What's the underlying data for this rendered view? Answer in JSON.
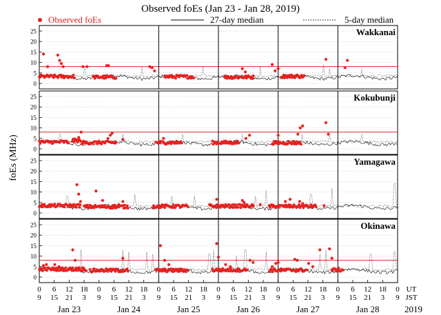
{
  "chart_data": {
    "type": "scatter",
    "title": "Observed foEs (Jan 23 - Jan 28, 2019)",
    "ylabel": "foEs (MHz)",
    "legend": {
      "placement": "top",
      "observed": "Observed foEs",
      "median27": "27-day median",
      "median5": "5-day median"
    },
    "ylim": [
      0,
      25
    ],
    "yticks": [
      "0",
      "5",
      "10",
      "15",
      "20",
      "25"
    ],
    "xlim": [
      0,
      6
    ],
    "x_unit": "days from 2019-01-23 00 UT",
    "ut_ticks": [
      "0",
      "6",
      "12",
      "18",
      "0",
      "6",
      "12",
      "18",
      "0",
      "6",
      "12",
      "18",
      "0",
      "6",
      "12",
      "18",
      "0",
      "6",
      "12",
      "18",
      "0",
      "6",
      "12",
      "18",
      "0"
    ],
    "jst_ticks": [
      "9",
      "15",
      "21",
      "3",
      "9",
      "15",
      "21",
      "3",
      "9",
      "15",
      "21",
      "3",
      "9",
      "15",
      "21",
      "3",
      "9",
      "15",
      "21",
      "3",
      "9",
      "15",
      "21",
      "3",
      "9"
    ],
    "ut_label": "UT",
    "jst_label": "JST",
    "date_labels": [
      "Jan 23",
      "Jan 24",
      "Jan 25",
      "Jan 26",
      "Jan 27",
      "Jan 28"
    ],
    "year_label": "2019",
    "day_separators": [
      2,
      3,
      4,
      5
    ],
    "colors": {
      "observed": "#e8201e",
      "threshold": "#d62a2a",
      "grid": "#aaaaaa",
      "median27": "#000000",
      "median5": "#333333"
    },
    "panels": [
      {
        "name": "Wakkanai",
        "threshold": 8,
        "median27_level": 3.0,
        "spikes": [
          [
            0.76,
            8
          ],
          [
            1.72,
            8
          ],
          [
            2.74,
            8
          ],
          [
            3.7,
            8
          ],
          [
            4.76,
            9
          ],
          [
            4.86,
            7
          ],
          [
            5.4,
            7
          ]
        ],
        "clusters": [
          [
            0.0,
            0.6,
            3.3
          ],
          [
            0.9,
            1.3,
            3.0
          ],
          [
            2.1,
            2.6,
            3.2
          ],
          [
            3.1,
            3.6,
            3.0
          ],
          [
            4.05,
            4.45,
            3.4
          ]
        ],
        "points": [
          [
            0.07,
            14.0
          ],
          [
            0.14,
            8.0
          ],
          [
            0.31,
            13.5
          ],
          [
            0.34,
            11.0
          ],
          [
            0.37,
            9.5
          ],
          [
            0.4,
            8.0
          ],
          [
            0.73,
            8.0
          ],
          [
            0.8,
            8.0
          ],
          [
            1.13,
            8.5
          ],
          [
            1.16,
            8.5
          ],
          [
            1.85,
            8.0
          ],
          [
            1.89,
            7.5
          ],
          [
            1.93,
            6.0
          ],
          [
            3.4,
            7.0
          ],
          [
            3.45,
            5.5
          ],
          [
            3.9,
            9.0
          ],
          [
            3.95,
            6.0
          ],
          [
            4.0,
            7.0
          ],
          [
            4.8,
            11.5
          ],
          [
            5.12,
            7.5
          ],
          [
            5.16,
            11.0
          ]
        ]
      },
      {
        "name": "Kokubunji",
        "threshold": 8,
        "median27_level": 2.8,
        "spikes": [
          [
            0.35,
            7
          ],
          [
            1.4,
            7
          ],
          [
            2.4,
            7
          ],
          [
            3.4,
            7
          ],
          [
            4.4,
            7
          ],
          [
            4.86,
            7
          ],
          [
            5.4,
            7
          ]
        ],
        "clusters": [
          [
            0.0,
            0.5,
            3.3
          ],
          [
            0.55,
            0.7,
            4.0
          ],
          [
            0.7,
            1.3,
            3.0
          ],
          [
            1.95,
            2.4,
            3.0
          ],
          [
            2.9,
            3.35,
            3.0
          ],
          [
            3.9,
            4.4,
            2.9
          ]
        ],
        "points": [
          [
            0.66,
            5.5
          ],
          [
            0.7,
            8.0
          ],
          [
            1.15,
            5.0
          ],
          [
            1.19,
            6.5
          ],
          [
            1.22,
            7.5
          ],
          [
            1.4,
            4.5
          ],
          [
            2.08,
            5.0
          ],
          [
            3.46,
            5.0
          ],
          [
            3.52,
            6.5
          ],
          [
            4.0,
            6.5
          ],
          [
            4.33,
            7.0
          ],
          [
            4.37,
            10.0
          ],
          [
            4.41,
            11.0
          ],
          [
            4.8,
            12.5
          ],
          [
            4.84,
            7.0
          ]
        ]
      },
      {
        "name": "Yamagawa",
        "threshold": 0,
        "median27_level": 2.8,
        "spikes": [
          [
            0.47,
            8
          ],
          [
            1.6,
            9
          ],
          [
            2.22,
            8
          ],
          [
            2.6,
            8
          ],
          [
            3.62,
            8
          ],
          [
            3.8,
            11
          ],
          [
            4.55,
            9
          ],
          [
            4.9,
            12
          ],
          [
            5.95,
            14
          ]
        ],
        "clusters": [
          [
            0.0,
            0.7,
            3.5
          ],
          [
            0.75,
            1.5,
            3.0
          ],
          [
            1.9,
            2.5,
            3.2
          ],
          [
            2.85,
            3.6,
            3.3
          ],
          [
            3.85,
            4.65,
            3.2
          ]
        ],
        "points": [
          [
            0.63,
            13.5
          ],
          [
            0.66,
            9.0
          ],
          [
            0.69,
            5.5
          ],
          [
            0.95,
            10.5
          ],
          [
            1.06,
            6.0
          ],
          [
            1.33,
            4.0
          ],
          [
            1.4,
            5.5
          ],
          [
            2.97,
            6.5
          ],
          [
            3.4,
            6.0
          ],
          [
            3.43,
            5.0
          ],
          [
            3.7,
            4.0
          ],
          [
            4.12,
            5.5
          ],
          [
            4.2,
            6.5
          ],
          [
            4.36,
            5.5
          ],
          [
            4.41,
            4.5
          ],
          [
            4.77,
            3.5
          ]
        ]
      },
      {
        "name": "Okinawa",
        "threshold": 8,
        "median27_level": 3.0,
        "spikes": [
          [
            0.7,
            13
          ],
          [
            1.4,
            13
          ],
          [
            1.5,
            12
          ],
          [
            1.8,
            12
          ],
          [
            1.9,
            11
          ],
          [
            2.85,
            11
          ],
          [
            2.92,
            13
          ],
          [
            3.3,
            10
          ],
          [
            3.45,
            13
          ],
          [
            3.8,
            12
          ],
          [
            4.7,
            11
          ],
          [
            4.8,
            13
          ],
          [
            5.55,
            11
          ],
          [
            5.95,
            12
          ]
        ],
        "clusters": [
          [
            0.0,
            0.8,
            3.8
          ],
          [
            0.85,
            1.5,
            3.2
          ],
          [
            1.95,
            2.5,
            3.2
          ],
          [
            2.9,
            3.5,
            3.4
          ],
          [
            3.85,
            4.5,
            3.3
          ],
          [
            4.9,
            5.1,
            3.4
          ]
        ],
        "points": [
          [
            0.07,
            5.5
          ],
          [
            0.12,
            6.0
          ],
          [
            0.26,
            6.0
          ],
          [
            0.33,
            5.0
          ],
          [
            0.56,
            13.0
          ],
          [
            0.6,
            8.0
          ],
          [
            0.66,
            4.5
          ],
          [
            0.74,
            4.0
          ],
          [
            1.4,
            9.0
          ],
          [
            2.03,
            15.0
          ],
          [
            2.1,
            8.0
          ],
          [
            2.17,
            6.0
          ],
          [
            2.97,
            16.0
          ],
          [
            3.0,
            9.5
          ],
          [
            3.12,
            6.0
          ],
          [
            3.2,
            5.0
          ],
          [
            3.53,
            8.0
          ],
          [
            3.58,
            7.0
          ],
          [
            3.9,
            5.0
          ],
          [
            3.96,
            6.5
          ],
          [
            4.0,
            7.0
          ],
          [
            4.28,
            8.5
          ],
          [
            4.32,
            8.0
          ],
          [
            4.51,
            6.5
          ],
          [
            4.58,
            5.0
          ],
          [
            4.7,
            13.0
          ],
          [
            4.86,
            13.5
          ],
          [
            4.9,
            9.0
          ]
        ]
      }
    ]
  }
}
